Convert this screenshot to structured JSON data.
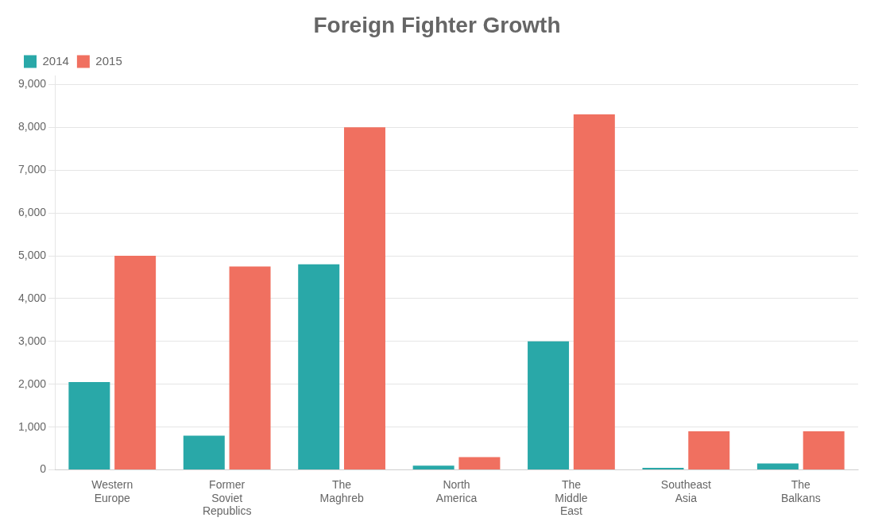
{
  "chart_data": {
    "type": "bar",
    "title": "Foreign Fighter Growth",
    "categories": [
      "Western\nEurope",
      "Former\nSoviet\nRepublics",
      "The\nMaghreb",
      "North\nAmerica",
      "The\nMiddle\nEast",
      "Southeast\nAsia",
      "The\nBalkans"
    ],
    "series": [
      {
        "name": "2014",
        "color": "#29a8a8",
        "values": [
          2050,
          800,
          4800,
          100,
          3000,
          50,
          150
        ]
      },
      {
        "name": "2015",
        "color": "#f07060",
        "values": [
          5000,
          4750,
          8000,
          300,
          8300,
          900,
          900
        ]
      }
    ],
    "ylim": [
      0,
      9200
    ],
    "yticks": [
      0,
      {
        "value": 1000,
        "label": "1,000"
      },
      {
        "value": 2000,
        "label": "2,000"
      },
      {
        "value": 3000,
        "label": "3,000"
      },
      {
        "value": 4000,
        "label": "4,000"
      },
      {
        "value": 5000,
        "label": "5,000"
      },
      {
        "value": 6000,
        "label": "6,000"
      },
      {
        "value": 7000,
        "label": "7,000"
      },
      {
        "value": 8000,
        "label": "8,000"
      },
      {
        "value": 9000,
        "label": "9,000"
      }
    ],
    "grid": true,
    "legend": "upper left"
  }
}
